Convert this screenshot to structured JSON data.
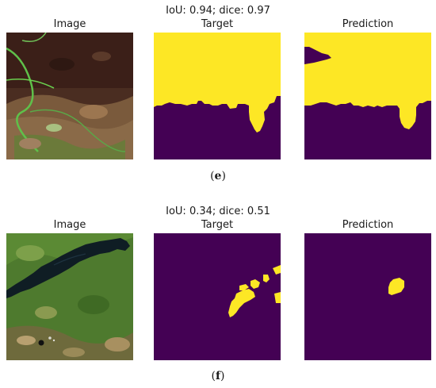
{
  "figures": [
    {
      "title": "IoU: 0.94; dice: 0.97",
      "panels": [
        "Image",
        "Target",
        "Prediction"
      ],
      "caption_letter": "e",
      "iou": 0.94,
      "dice": 0.97
    },
    {
      "title": "IoU: 0.34; dice: 0.51",
      "panels": [
        "Image",
        "Target",
        "Prediction"
      ],
      "caption_letter": "f",
      "iou": 0.34,
      "dice": 0.51
    }
  ],
  "colors": {
    "mask_background": "#440154",
    "mask_foreground": "#fde725"
  }
}
